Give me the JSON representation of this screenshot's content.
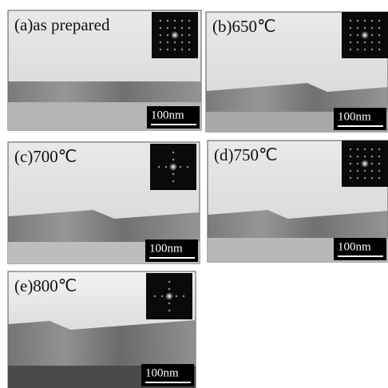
{
  "panels": [
    {
      "label": "(a)as prepared",
      "scale_bar": "100nm"
    },
    {
      "label": "(b)650℃",
      "scale_bar": "100nm"
    },
    {
      "label": "(c)700℃",
      "scale_bar": "100nm"
    },
    {
      "label": "(d)750℃",
      "scale_bar": "100nm"
    },
    {
      "label": "(e)800℃",
      "scale_bar": "100nm"
    }
  ]
}
